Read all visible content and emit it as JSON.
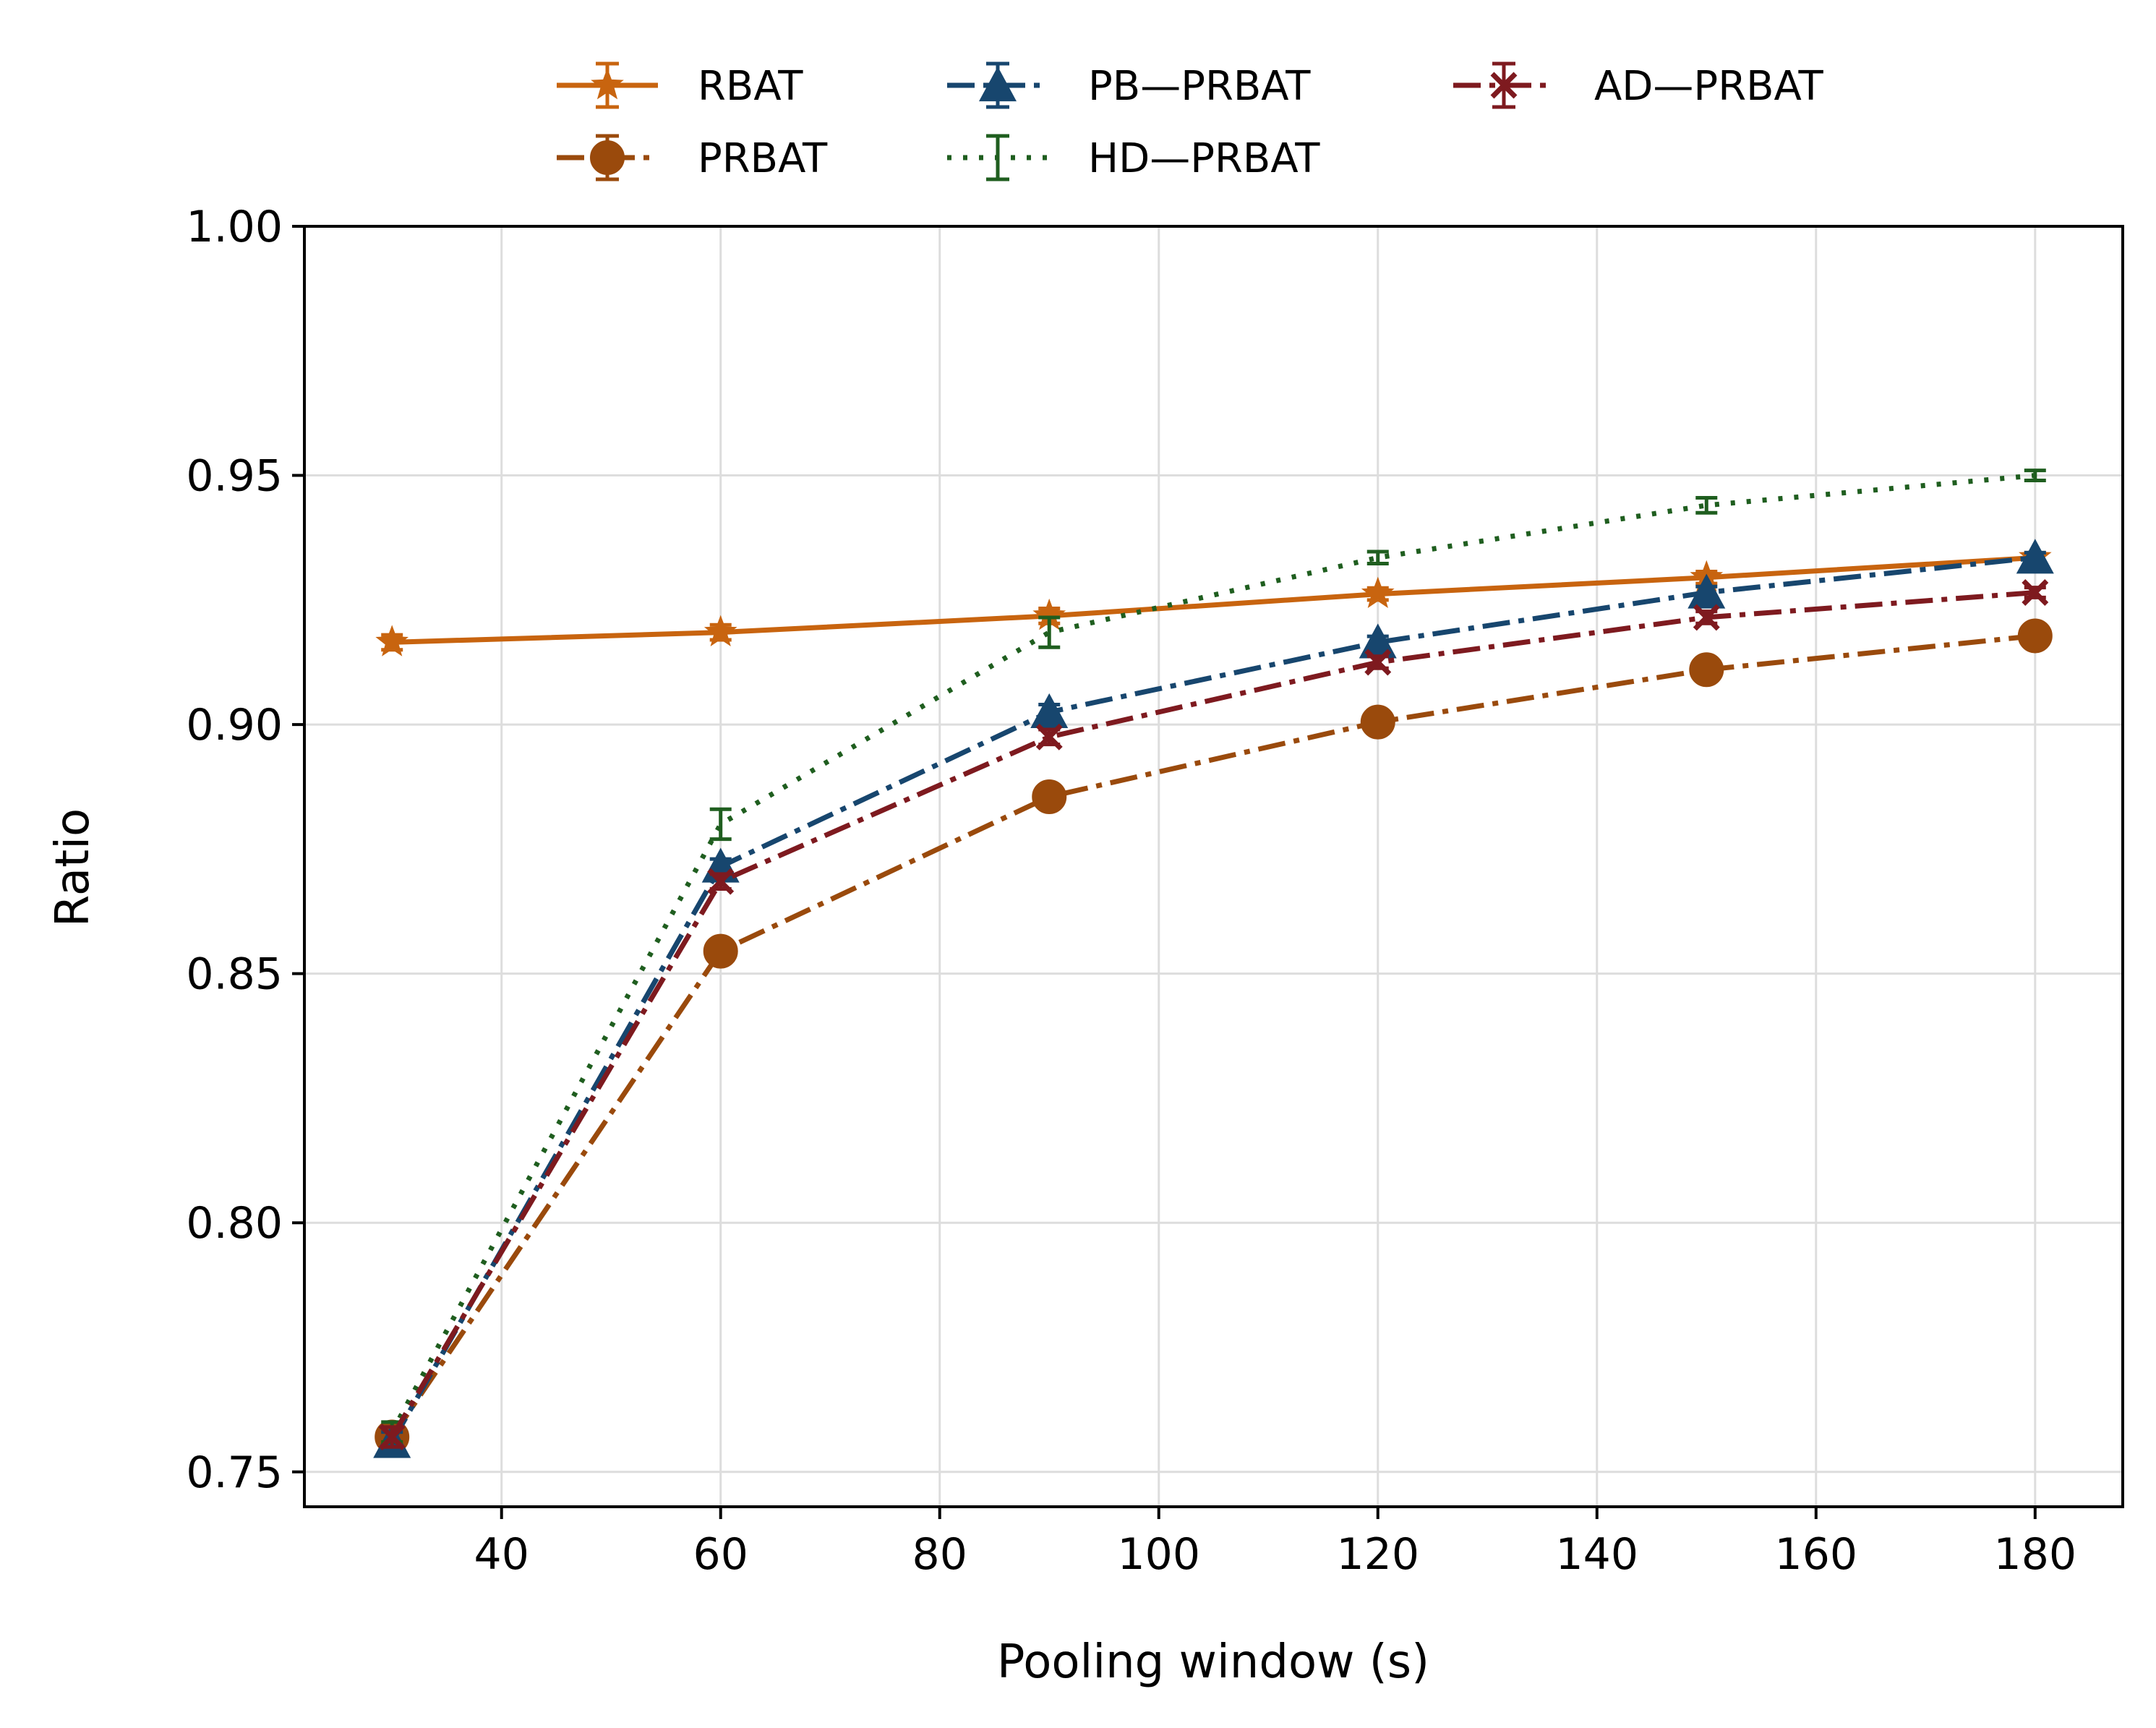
{
  "chart_data": {
    "type": "line",
    "title": "",
    "xlabel": "Pooling window (s)",
    "ylabel": "Ratio",
    "xlim": [
      22,
      188
    ],
    "ylim": [
      0.743,
      1.0
    ],
    "xticks": [
      40,
      60,
      80,
      100,
      120,
      140,
      160,
      180
    ],
    "yticks": [
      0.75,
      0.8,
      0.85,
      0.9,
      0.95,
      1.0
    ],
    "xtick_labels": [
      "40",
      "60",
      "80",
      "100",
      "120",
      "140",
      "160",
      "180"
    ],
    "ytick_labels": [
      "0.75",
      "0.80",
      "0.85",
      "0.90",
      "0.95",
      "1.00"
    ],
    "grid": true,
    "legend_position": "top-center, outside plot",
    "x": [
      30,
      60,
      90,
      120,
      150,
      180
    ],
    "series": [
      {
        "name": "RBAT",
        "color": "#c8640f",
        "marker": "star",
        "linestyle": "solid",
        "values": [
          0.9165,
          0.9185,
          0.9218,
          0.9262,
          0.9295,
          0.9335
        ],
        "errors": [
          0.0015,
          0.0015,
          0.0015,
          0.0012,
          0.0012,
          0.001
        ]
      },
      {
        "name": "PRBAT",
        "color": "#9a4a0c",
        "marker": "circle",
        "linestyle": "dashdot",
        "values": [
          0.757,
          0.8545,
          0.8855,
          0.9005,
          0.911,
          0.9178
        ],
        "errors": [
          0.002,
          0.0015,
          0.0015,
          0.0012,
          0.0012,
          0.001
        ]
      },
      {
        "name": "PB—PRBAT",
        "color": "#17466e",
        "marker": "triangle",
        "linestyle": "dashdot",
        "values": [
          0.756,
          0.8715,
          0.9025,
          0.9165,
          0.9265,
          0.9335
        ],
        "errors": [
          0.002,
          0.0015,
          0.0015,
          0.0012,
          0.0012,
          0.001
        ]
      },
      {
        "name": "HD—PRBAT",
        "color": "#1f5e1f",
        "marker": "none",
        "linestyle": "dotted",
        "values": [
          0.758,
          0.88,
          0.9185,
          0.9335,
          0.944,
          0.95
        ],
        "errors": [
          0.002,
          0.003,
          0.003,
          0.0012,
          0.0015,
          0.001
        ]
      },
      {
        "name": "AD—PRBAT",
        "color": "#7e1a1f",
        "marker": "x",
        "linestyle": "dashdot",
        "values": [
          0.757,
          0.8685,
          0.8975,
          0.9125,
          0.9215,
          0.9265
        ],
        "errors": [
          0.002,
          0.0015,
          0.0015,
          0.0012,
          0.0012,
          0.001
        ]
      }
    ]
  }
}
